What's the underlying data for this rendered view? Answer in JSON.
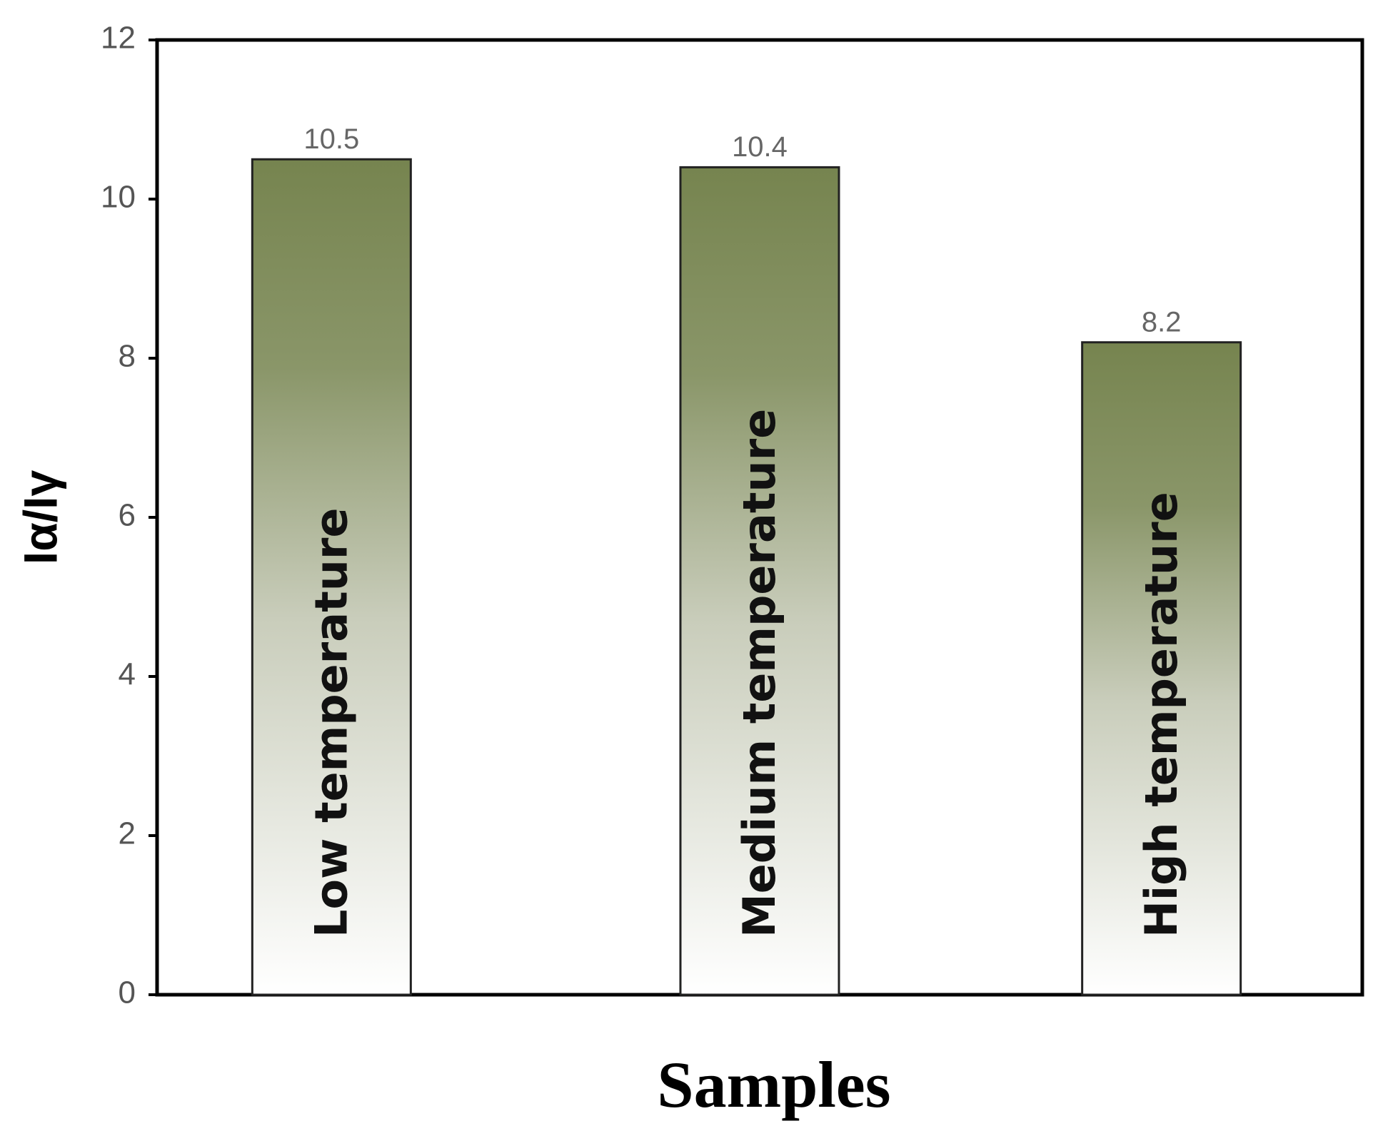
{
  "chart_data": {
    "type": "bar",
    "x_label": "Samples",
    "y_label": "Iα/Iγ",
    "categories": [
      "Low temperature",
      "Medium temperature",
      "High temperature"
    ],
    "values": [
      10.5,
      10.4,
      8.2
    ],
    "color": "#76844f",
    "ylim": [
      0,
      12
    ],
    "yticks": [
      0,
      2,
      4,
      6,
      8,
      10,
      12
    ],
    "grid": false
  }
}
